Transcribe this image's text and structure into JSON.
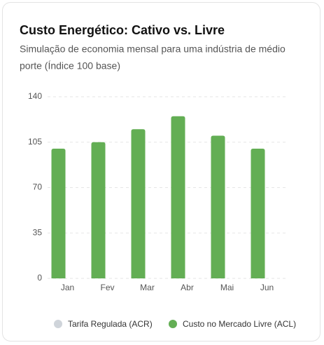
{
  "chart_data": {
    "type": "bar",
    "title": "Custo Energético: Cativo vs. Livre",
    "subtitle": [
      "Simulação de economia mensal para uma indústria de médio",
      "porte (Índice 100 base)"
    ],
    "categories": [
      "Jan",
      "Fev",
      "Mar",
      "Abr",
      "Mai",
      "Jun"
    ],
    "series": [
      {
        "name": "Tarifa Regulada (ACR)",
        "color": "#cfd4da",
        "values": [
          null,
          null,
          null,
          null,
          null,
          null
        ]
      },
      {
        "name": "Custo no Mercado Livre (ACL)",
        "color": "#63ae54",
        "values": [
          100,
          105,
          115,
          125,
          110,
          100
        ]
      }
    ],
    "ylim": [
      0,
      140
    ],
    "yticks": [
      0,
      35,
      70,
      105,
      140
    ],
    "grid": true
  }
}
